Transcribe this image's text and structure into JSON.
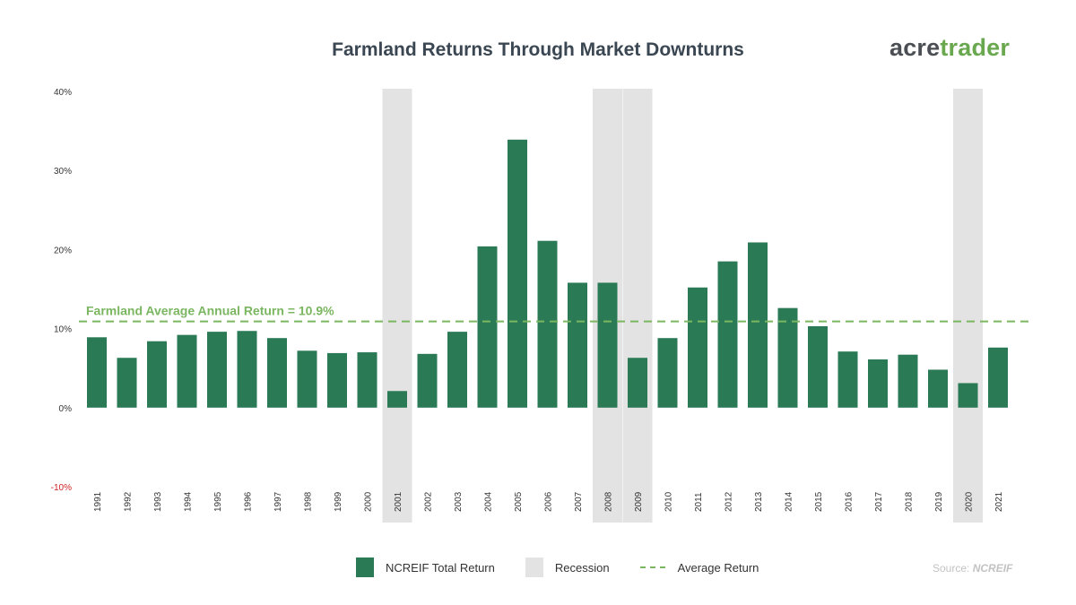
{
  "header": {
    "title": "Farmland Returns Through Market Downturns",
    "logo_part1": "acre",
    "logo_part2": "trader"
  },
  "legend": {
    "bar_label": "NCREIF Total Return",
    "recession_label": "Recession",
    "average_label": "Average Return"
  },
  "source": {
    "prefix": "Source: ",
    "name": "NCREIF"
  },
  "colors": {
    "bar": "#2a7a55",
    "recession": "#e2e3e2",
    "average_line": "#7bb661",
    "negative_tick": "#cc2222"
  },
  "chart_data": {
    "type": "bar",
    "title": "Farmland Returns Through Market Downturns",
    "categories": [
      "1991",
      "1992",
      "1993",
      "1994",
      "1995",
      "1996",
      "1997",
      "1998",
      "1999",
      "2000",
      "2001",
      "2002",
      "2003",
      "2004",
      "2005",
      "2006",
      "2007",
      "2008",
      "2009",
      "2010",
      "2011",
      "2012",
      "2013",
      "2014",
      "2015",
      "2016",
      "2017",
      "2018",
      "2019",
      "2020",
      "2021"
    ],
    "series": [
      {
        "name": "NCREIF Total Return",
        "values": [
          8.9,
          6.3,
          8.4,
          9.2,
          9.6,
          9.7,
          8.8,
          7.2,
          6.9,
          7.0,
          2.1,
          6.8,
          9.6,
          20.4,
          33.9,
          21.1,
          15.8,
          15.8,
          6.3,
          8.8,
          15.2,
          18.5,
          20.9,
          12.6,
          10.3,
          7.1,
          6.1,
          6.7,
          4.8,
          3.1,
          7.6
        ]
      }
    ],
    "recessions": [
      "2001",
      "2008",
      "2009",
      "2020"
    ],
    "average": {
      "value": 10.9,
      "label": "Farmland Average Annual Return = 10.9%"
    },
    "yticks": [
      {
        "value": 40,
        "label": "40%"
      },
      {
        "value": 30,
        "label": "30%"
      },
      {
        "value": 20,
        "label": "20%"
      },
      {
        "value": 10,
        "label": "10%"
      },
      {
        "value": 0,
        "label": "0%"
      },
      {
        "value": -10,
        "label": "-10%"
      }
    ],
    "ylim": [
      -10,
      40
    ],
    "xlabel": "",
    "ylabel": "",
    "grid": false
  }
}
